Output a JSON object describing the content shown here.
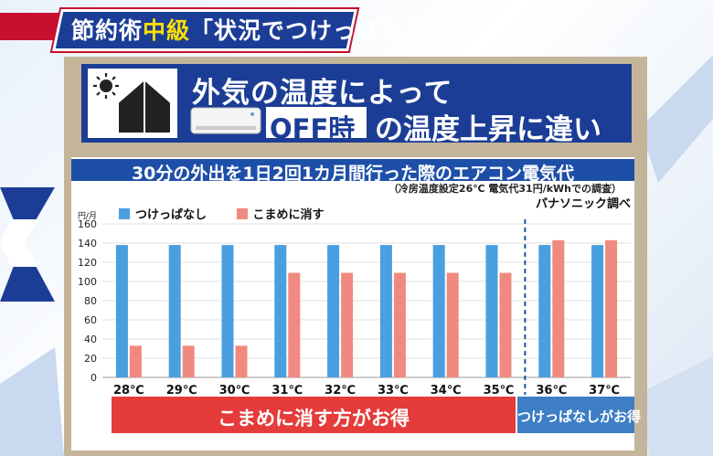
{
  "header_tag": {
    "prefix": "節約術",
    "level": "中級",
    "title": "「状況でつけっぱなし」"
  },
  "banner": {
    "line1": "外気の温度によって",
    "off_label": "OFF時",
    "line2": "の温度上昇に違い",
    "icons": [
      "sun-icon",
      "house-icon",
      "air-conditioner-icon"
    ]
  },
  "chart_data": {
    "type": "bar",
    "title": "30分の外出を1日2回1カ月間行った際のエアコン電気代",
    "note": "（冷房温度設定26℃ 電気代31円/kWhでの調査）",
    "source": "パナソニック調べ",
    "ylabel": "円/月",
    "ylim": [
      0,
      160
    ],
    "yticks": [
      0,
      20,
      40,
      60,
      80,
      100,
      120,
      140,
      160
    ],
    "categories": [
      "28℃",
      "29℃",
      "30℃",
      "31℃",
      "32℃",
      "33℃",
      "34℃",
      "35℃",
      "36℃",
      "37℃"
    ],
    "series": [
      {
        "name": "つけっぱなし",
        "color": "#4a9fe0",
        "values": [
          138,
          138,
          138,
          138,
          138,
          138,
          138,
          138,
          138,
          138
        ]
      },
      {
        "name": "こまめに消す",
        "color": "#f08a80",
        "values": [
          33,
          33,
          33,
          109,
          109,
          109,
          109,
          109,
          143,
          143
        ]
      }
    ],
    "divider_after_category": "35℃",
    "grid": true,
    "legend": "top-left"
  },
  "verdicts": {
    "left": "こまめに消す方がお得",
    "right": "つけっぱなしがお得",
    "left_color": "#e53b3b",
    "right_color": "#3d7ec6"
  }
}
